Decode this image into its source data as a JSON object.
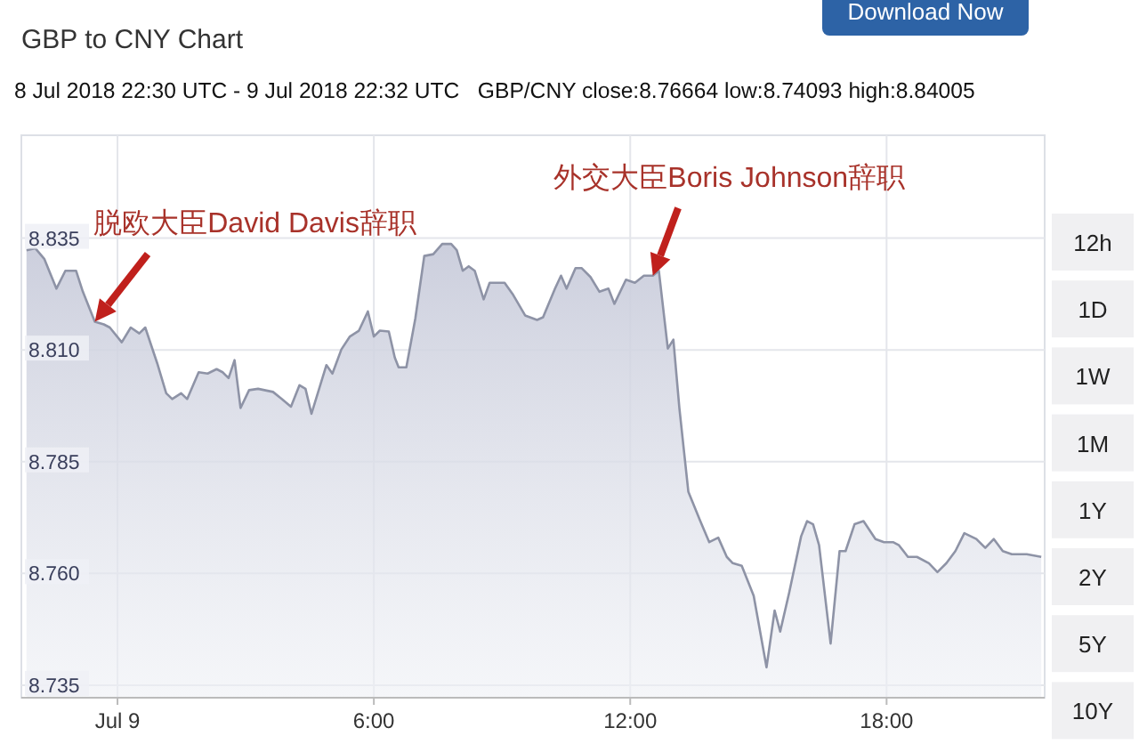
{
  "chart_data": {
    "type": "area",
    "title": "GBP to CNY Chart",
    "subtitle": "8 Jul 2018 22:30 UTC - 9 Jul 2018 22:32 UTC   GBP/CNY close:8.76664 low:8.74093 high:8.84005",
    "series": [
      {
        "color": "#8e93a6",
        "x": [
          -2.13,
          -1.92,
          -1.71,
          -1.43,
          -1.22,
          -0.97,
          -0.81,
          -0.53,
          -0.32,
          -0.18,
          0.1,
          0.31,
          0.51,
          0.65,
          0.93,
          1.14,
          1.28,
          1.49,
          1.63,
          1.9,
          2.11,
          2.32,
          2.46,
          2.6,
          2.74,
          2.88,
          3.08,
          3.29,
          3.64,
          3.85,
          4.06,
          4.26,
          4.4,
          4.54,
          4.89,
          5.03,
          5.24,
          5.44,
          5.65,
          5.86,
          6.0,
          6.14,
          6.35,
          6.49,
          6.58,
          6.76,
          6.97,
          7.18,
          7.39,
          7.6,
          7.81,
          7.94,
          8.08,
          8.22,
          8.36,
          8.57,
          8.71,
          9.06,
          9.26,
          9.54,
          9.82,
          9.96,
          10.24,
          10.38,
          10.51,
          10.72,
          10.86,
          11.07,
          11.28,
          11.49,
          11.63,
          11.9,
          12.11,
          12.32,
          12.53,
          12.67,
          12.88,
          13.01,
          13.15,
          13.36,
          13.64,
          13.85,
          14.06,
          14.26,
          14.4,
          14.61,
          14.89,
          15.19,
          15.38,
          15.51,
          15.72,
          16.0,
          16.14,
          16.28,
          16.42,
          16.69,
          16.9,
          17.04,
          17.25,
          17.46,
          17.74,
          17.94,
          18.15,
          18.29,
          18.5,
          18.71,
          18.99,
          19.19,
          19.4,
          19.61,
          19.82,
          20.1,
          20.31,
          20.51,
          20.72,
          20.93,
          21.28,
          21.62
        ],
        "values": [
          8.8323,
          8.8327,
          8.8303,
          8.8237,
          8.8277,
          8.8277,
          8.823,
          8.8163,
          8.8157,
          8.815,
          8.8117,
          8.815,
          8.8137,
          8.815,
          8.807,
          8.8003,
          8.799,
          8.8003,
          8.799,
          8.805,
          8.8047,
          8.8057,
          8.805,
          8.8037,
          8.8077,
          8.797,
          8.801,
          8.8013,
          8.8006,
          8.799,
          8.7973,
          8.8021,
          8.8013,
          8.7957,
          8.8066,
          8.8047,
          8.8101,
          8.813,
          8.8143,
          8.8186,
          8.813,
          8.8143,
          8.8141,
          8.8083,
          8.8061,
          8.8061,
          8.817,
          8.831,
          8.8314,
          8.8337,
          8.8337,
          8.8323,
          8.8277,
          8.8287,
          8.8277,
          8.8213,
          8.825,
          8.825,
          8.8223,
          8.8177,
          8.8167,
          8.8173,
          8.8237,
          8.8266,
          8.8237,
          8.8283,
          8.8283,
          8.8263,
          8.823,
          8.8237,
          8.8203,
          8.8257,
          8.825,
          8.8266,
          8.8266,
          8.8277,
          8.8103,
          8.8123,
          8.797,
          8.7783,
          8.7717,
          8.767,
          8.768,
          8.7637,
          8.7623,
          8.7617,
          8.755,
          8.739,
          8.7517,
          8.747,
          8.7557,
          8.7683,
          8.7717,
          8.771,
          8.7663,
          8.7443,
          8.765,
          8.765,
          8.771,
          8.7717,
          8.7677,
          8.767,
          8.767,
          8.7663,
          8.7637,
          8.7637,
          8.7623,
          8.7603,
          8.7623,
          8.765,
          8.769,
          8.7677,
          8.7657,
          8.7677,
          8.765,
          8.7643,
          8.7643,
          8.7637
        ]
      }
    ],
    "xlim": [
      -2.25,
      21.7
    ],
    "xticks": [
      {
        "value": 0,
        "label": "Jul 9"
      },
      {
        "value": 6,
        "label": "6:00"
      },
      {
        "value": 12,
        "label": "12:00"
      },
      {
        "value": 18,
        "label": "18:00"
      }
    ],
    "ylim": [
      8.7322,
      8.858
    ],
    "yticks": [
      {
        "value": 8.735,
        "label": "8.735"
      },
      {
        "value": 8.76,
        "label": "8.760"
      },
      {
        "value": 8.785,
        "label": "8.785"
      },
      {
        "value": 8.81,
        "label": "8.810"
      },
      {
        "value": 8.835,
        "label": "8.835"
      }
    ],
    "grid": true,
    "annotations": [
      {
        "text": "脱欧大臣David Davis辞职",
        "x": -0.53,
        "y": 8.8163
      },
      {
        "text": "外交大臣Boris Johnson辞职",
        "x": 12.53,
        "y": 8.8266
      },
      "Download Now",
      "12h",
      "1D",
      "1W",
      "1M",
      "1Y",
      "2Y",
      "5Y",
      "10Y"
    ]
  }
}
